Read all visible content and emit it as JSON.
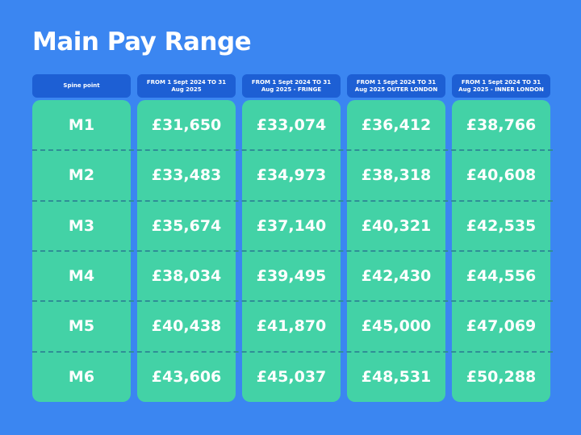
{
  "header": {
    "title": "Main Pay Range"
  },
  "table": {
    "columns": [
      "Spine point",
      "FROM 1 Sept 2024 TO 31 Aug 2025",
      "FROM 1 Sept 2024 TO 31 Aug 2025 - FRINGE",
      "FROM 1 Sept 2024 TO 31 Aug 2025 OUTER LONDON",
      "FROM 1 Sept 2024 TO 31 Aug 2025 - INNER LONDON"
    ],
    "rows": [
      [
        "M1",
        "£31,650",
        "£33,074",
        "£36,412",
        "£38,766"
      ],
      [
        "M2",
        "£33,483",
        "£34,973",
        "£38,318",
        "£40,608"
      ],
      [
        "M3",
        "£35,674",
        "£37,140",
        "£40,321",
        "£42,535"
      ],
      [
        "M4",
        "£38,034",
        "£39,495",
        "£42,430",
        "£44,556"
      ],
      [
        "M5",
        "£40,438",
        "£41,870",
        "£45,000",
        "£47,069"
      ],
      [
        "M6",
        "£43,606",
        "£45,037",
        "£48,531",
        "£50,288"
      ]
    ]
  }
}
